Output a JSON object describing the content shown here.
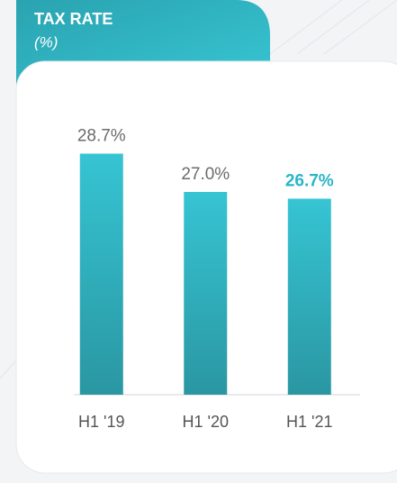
{
  "chart_data": {
    "type": "bar",
    "title": "TAX RATE",
    "subtitle": "(%)",
    "categories": [
      "H1 '19",
      "H1 '20",
      "H1 '21"
    ],
    "values": [
      28.7,
      27.0,
      26.7
    ],
    "value_labels": [
      "28.7%",
      "27.0%",
      "26.7%"
    ],
    "value_label_colors": [
      "#6b6b6b",
      "#6b6b6b",
      "#2bb5c8"
    ],
    "color": "#31b6c4",
    "ylim": [
      18,
      29.5
    ]
  }
}
